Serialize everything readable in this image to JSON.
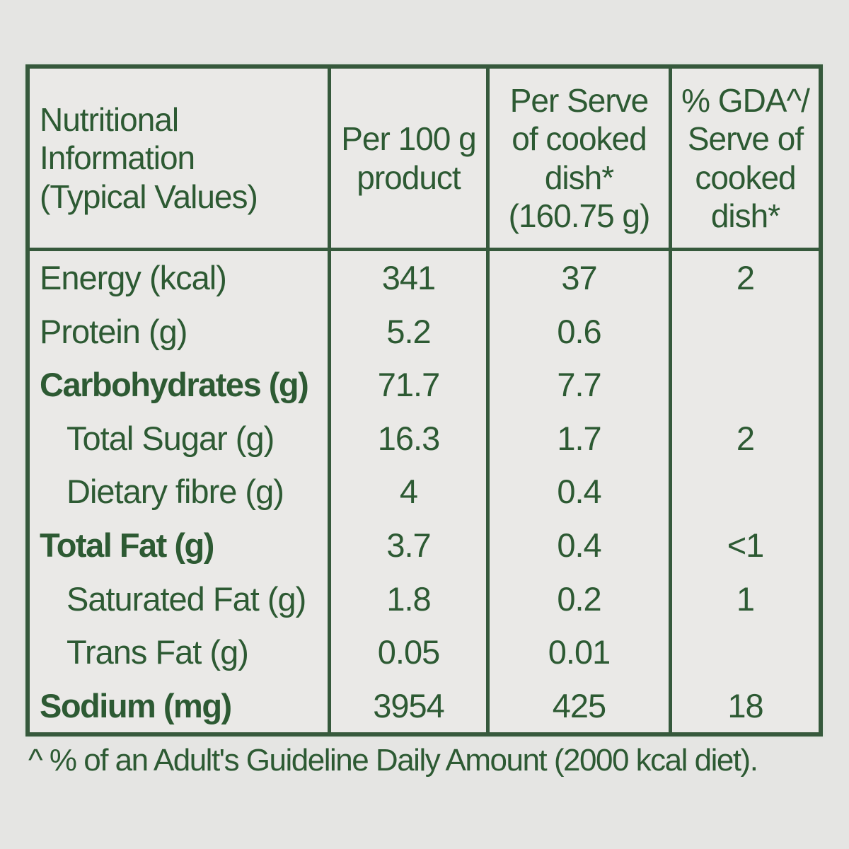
{
  "colors": {
    "text_green": "#2d5a33",
    "border_green": "#36593c",
    "background": "#e5e5e3"
  },
  "table": {
    "title": "Nutritional Information (Typical Values)",
    "headers": [
      {
        "label": "Nutritional Information (Typical Values)",
        "lines": [
          "Nutritional",
          "Information",
          "(Typical Values)"
        ]
      },
      {
        "label": "Per 100 g product",
        "lines": [
          "Per 100 g",
          "product"
        ]
      },
      {
        "label": "Per Serve of cooked dish* (160.75 g)",
        "lines": [
          "Per Serve",
          "of cooked",
          "dish*",
          "(160.75 g)"
        ]
      },
      {
        "label": "% GDA^/ Serve of cooked dish*",
        "lines": [
          "% GDA^/",
          "Serve of",
          "cooked",
          "dish*"
        ]
      }
    ],
    "rows": [
      {
        "label": "Energy (kcal)",
        "per_100g": "341",
        "per_serve": "37",
        "gda": "2",
        "bold": false,
        "indent": false
      },
      {
        "label": "Protein (g)",
        "per_100g": "5.2",
        "per_serve": "0.6",
        "gda": "",
        "bold": false,
        "indent": false
      },
      {
        "label": "Carbohydrates (g)",
        "per_100g": "71.7",
        "per_serve": "7.7",
        "gda": "",
        "bold": true,
        "indent": false
      },
      {
        "label": "Total Sugar (g)",
        "per_100g": "16.3",
        "per_serve": "1.7",
        "gda": "2",
        "bold": false,
        "indent": true
      },
      {
        "label": "Dietary fibre (g)",
        "per_100g": "4",
        "per_serve": "0.4",
        "gda": "",
        "bold": false,
        "indent": true
      },
      {
        "label": "Total Fat (g)",
        "per_100g": "3.7",
        "per_serve": "0.4",
        "gda": "<1",
        "bold": true,
        "indent": false
      },
      {
        "label": "Saturated Fat (g)",
        "per_100g": "1.8",
        "per_serve": "0.2",
        "gda": "1",
        "bold": false,
        "indent": true
      },
      {
        "label": "Trans Fat (g)",
        "per_100g": "0.05",
        "per_serve": "0.01",
        "gda": "",
        "bold": false,
        "indent": true
      },
      {
        "label": "Sodium (mg)",
        "per_100g": "3954",
        "per_serve": "425",
        "gda": "18",
        "bold": true,
        "indent": false
      }
    ]
  },
  "footnote": "^ % of an Adult's Guideline Daily Amount (2000 kcal diet)."
}
